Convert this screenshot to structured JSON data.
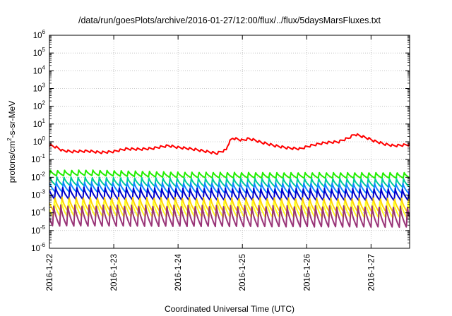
{
  "chart_data": {
    "type": "line",
    "title": "/data/run/goesPlots/archive/2016-01-27/12:00/flux/../flux/5daysMarsFluxes.txt",
    "xlabel": "Coordinated Universal Time (UTC)",
    "ylabel": {
      "prefix": "protons/cm",
      "superscript": "2",
      "suffix": "-s-sr-MeV"
    },
    "xlim_days": [
      0,
      5.6
    ],
    "x_tick_labels": [
      "2016-1-22",
      "2016-1-23",
      "2016-1-24",
      "2016-1-25",
      "2016-1-26",
      "2016-1-27"
    ],
    "y_scale": "log",
    "ylim": [
      1e-06,
      1000000.0
    ],
    "y_tick_labels": [
      {
        "base": "10",
        "exp": "-6"
      },
      {
        "base": "10",
        "exp": "-5"
      },
      {
        "base": "10",
        "exp": "-4"
      },
      {
        "base": "10",
        "exp": "-3"
      },
      {
        "base": "10",
        "exp": "-2"
      },
      {
        "base": "10",
        "exp": "-1"
      },
      {
        "base": "10",
        "exp": "0"
      },
      {
        "base": "10",
        "exp": "1"
      },
      {
        "base": "10",
        "exp": "2"
      },
      {
        "base": "10",
        "exp": "3"
      },
      {
        "base": "10",
        "exp": "4"
      },
      {
        "base": "10",
        "exp": "5"
      },
      {
        "base": "10",
        "exp": "6"
      }
    ],
    "grid": true,
    "series": [
      {
        "color": "#ff0000",
        "pattern": "envelope",
        "envelope": [
          [
            0,
            0.65
          ],
          [
            0.1,
            0.5
          ],
          [
            0.2,
            0.32
          ],
          [
            0.35,
            0.28
          ],
          [
            0.6,
            0.3
          ],
          [
            0.8,
            0.25
          ],
          [
            1.0,
            0.28
          ],
          [
            1.2,
            0.4
          ],
          [
            1.4,
            0.38
          ],
          [
            1.6,
            0.42
          ],
          [
            1.85,
            0.6
          ],
          [
            2.0,
            0.48
          ],
          [
            2.2,
            0.4
          ],
          [
            2.4,
            0.3
          ],
          [
            2.6,
            0.22
          ],
          [
            2.75,
            0.35
          ],
          [
            2.85,
            1.6
          ],
          [
            3.0,
            1.2
          ],
          [
            3.1,
            1.5
          ],
          [
            3.3,
            0.9
          ],
          [
            3.5,
            0.6
          ],
          [
            3.7,
            0.45
          ],
          [
            3.9,
            0.4
          ],
          [
            4.1,
            0.65
          ],
          [
            4.3,
            0.9
          ],
          [
            4.5,
            1.0
          ],
          [
            4.65,
            1.6
          ],
          [
            4.75,
            2.6
          ],
          [
            4.9,
            1.8
          ],
          [
            5.05,
            1.1
          ],
          [
            5.2,
            0.75
          ],
          [
            5.35,
            0.6
          ],
          [
            5.5,
            0.65
          ],
          [
            5.6,
            0.7
          ]
        ],
        "saw_period": 0.09,
        "saw_amp_log10": 0.13
      },
      {
        "color": "#22ee00",
        "pattern": "sawtooth",
        "peak": 0.025,
        "trough": 0.012,
        "trend": [
          [
            0,
            1.0
          ],
          [
            0.6,
            1.05
          ],
          [
            2.0,
            0.8
          ],
          [
            3.5,
            0.75
          ],
          [
            5.6,
            0.75
          ]
        ]
      },
      {
        "color": "#00cc99",
        "pattern": "sawtooth",
        "peak": 0.011,
        "trough": 0.0035,
        "trend": [
          [
            0,
            1.0
          ],
          [
            2.0,
            0.85
          ],
          [
            5.6,
            0.8
          ]
        ]
      },
      {
        "color": "#1188ff",
        "pattern": "sawtooth",
        "peak": 0.006,
        "trough": 0.0015,
        "trend": [
          [
            0,
            1.0
          ],
          [
            2.0,
            0.85
          ],
          [
            5.6,
            0.8
          ]
        ]
      },
      {
        "color": "#0000cc",
        "pattern": "sawtooth",
        "peak": 0.003,
        "trough": 0.0006,
        "trend": [
          [
            0,
            1.0
          ],
          [
            2.0,
            0.85
          ],
          [
            5.6,
            0.8
          ]
        ]
      },
      {
        "color": "#ffd400",
        "pattern": "sawtooth",
        "peak": 0.0008,
        "trough": 0.00012,
        "trend": [
          [
            0,
            1.0
          ],
          [
            5.6,
            0.85
          ]
        ]
      },
      {
        "color": "#ffff22",
        "pattern": "sawtooth",
        "peak": 0.0005,
        "trough": 6e-05,
        "trend": [
          [
            0,
            1.0
          ],
          [
            5.6,
            0.85
          ]
        ]
      },
      {
        "color": "#993377",
        "pattern": "sawtooth",
        "peak": 0.0003,
        "trough": 1.8e-05,
        "trend": [
          [
            0,
            1.0
          ],
          [
            5.6,
            0.85
          ]
        ]
      }
    ],
    "sawtooth": {
      "period_days": 0.11,
      "rise_fraction": 0.15,
      "phase_offsets": [
        0,
        0.01,
        0.02,
        0.03,
        0.04,
        0.05,
        0.06
      ]
    }
  }
}
